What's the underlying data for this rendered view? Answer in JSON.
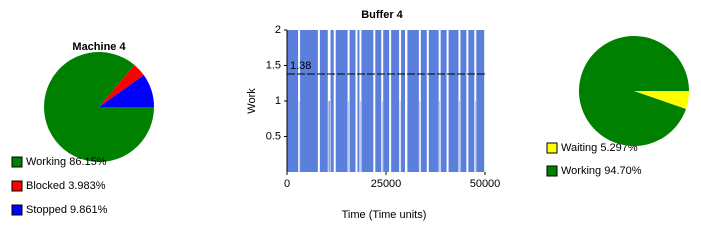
{
  "chart_data": [
    {
      "type": "pie",
      "title": "Machine 4",
      "categories": [
        "Working",
        "Blocked",
        "Stopped"
      ],
      "values": [
        86.15,
        3.983,
        9.861
      ],
      "value_labels": [
        "86.15%",
        "3.983%",
        "9.861%"
      ],
      "colors": [
        "#008000",
        "#ff0000",
        "#0000ff"
      ]
    },
    {
      "type": "step",
      "title": "Buffer 4",
      "x_label": "Time (Time units)",
      "y_label": "Work",
      "x": [
        0,
        3000,
        3300,
        8000,
        8300,
        10500,
        11000,
        12000,
        12300,
        15500,
        15800,
        17500,
        17800,
        18500,
        18800,
        22000,
        22300,
        24000,
        24300,
        26000,
        26300,
        28500,
        28800,
        30000,
        30400,
        33500,
        33800,
        35500,
        35800,
        38500,
        38800,
        40500,
        40800,
        43500,
        43800,
        45500,
        45800,
        47500,
        47800
      ],
      "values": [
        2,
        1,
        2,
        0,
        2,
        1,
        2,
        0,
        2,
        1,
        2,
        0,
        2,
        1,
        2,
        0,
        2,
        1,
        2,
        0,
        2,
        1,
        2,
        0,
        2,
        1,
        2,
        0,
        2,
        1,
        2,
        0,
        2,
        1,
        2,
        0,
        2,
        1,
        2
      ],
      "color": "#5b7fdc",
      "mean_line": 1.38,
      "xlim": [
        0,
        50000
      ],
      "xticks": [
        0,
        25000,
        50000
      ],
      "ylim": [
        0,
        2
      ],
      "yticks": [
        0.5,
        1,
        1.5,
        2
      ]
    },
    {
      "type": "pie",
      "categories": [
        "Waiting",
        "Working"
      ],
      "values": [
        5.297,
        94.7
      ],
      "value_labels": [
        "5.297%",
        "94.70%"
      ],
      "colors": [
        "#ffff00",
        "#008000"
      ]
    }
  ]
}
